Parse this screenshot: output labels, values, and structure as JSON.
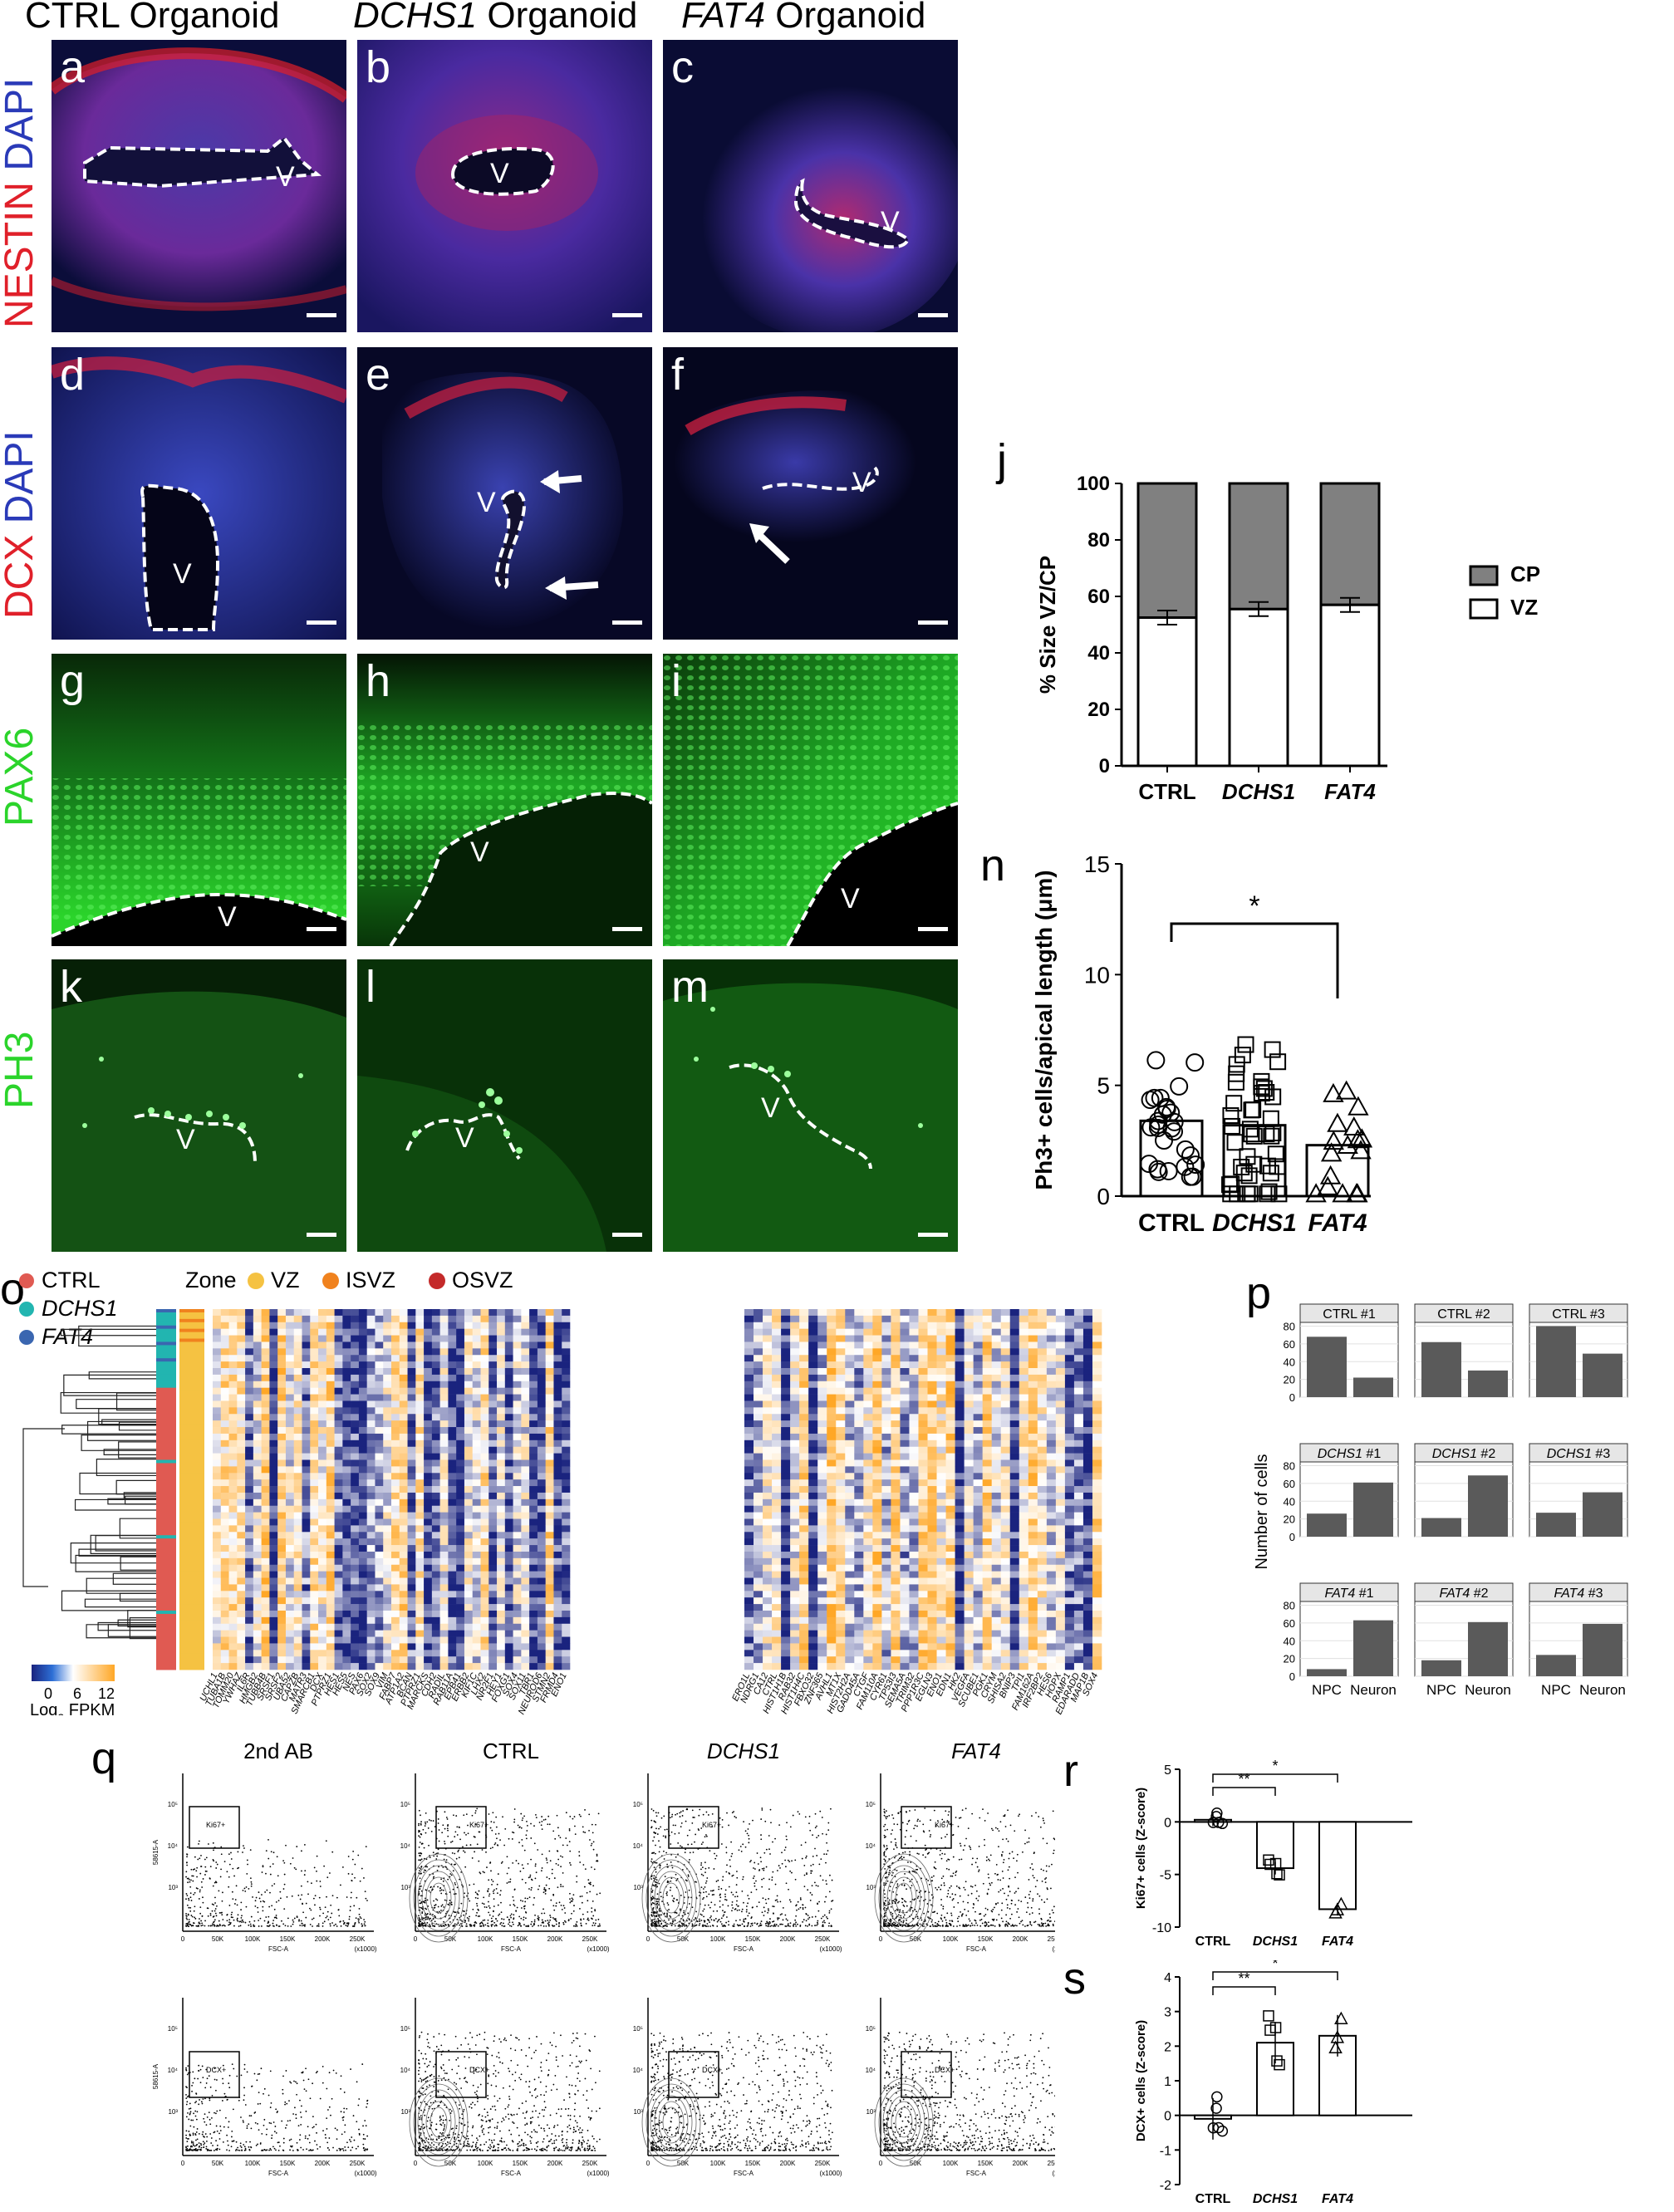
{
  "columns": {
    "ctrl_organoid": "CTRL Organoid",
    "dchs1_gene": "DCHS1",
    "fat4_gene": "FAT4",
    "organoid_word": "Organoid"
  },
  "rows": {
    "nestin": "NESTIN",
    "dcx": "DCX",
    "dapi": "DAPI",
    "pax6": "PAX6",
    "ph3": "PH3"
  },
  "panel_letters": {
    "a": "a",
    "b": "b",
    "c": "c",
    "d": "d",
    "e": "e",
    "f": "f",
    "g": "g",
    "h": "h",
    "i": "i",
    "j": "j",
    "k": "k",
    "l": "l",
    "m": "m",
    "n": "n",
    "o": "o",
    "p": "p",
    "q": "q",
    "r": "r",
    "s": "s"
  },
  "ventricle_mark": "V",
  "colors": {
    "nestin_red": "#e0202a",
    "dapi_blue": "#2a3ab8",
    "gfp_green": "#2bd42b",
    "ctrl_dot": "#e05a52",
    "dchs1_dot": "#22b5b0",
    "fat4_dot": "#3a66b0",
    "vz_dot": "#f5c242",
    "isvz_dot": "#f0821e",
    "osvz_dot": "#c42a2a",
    "heat_low": "#1a237e",
    "heat_mid": "#ffffff",
    "heat_high": "#ffa726",
    "bar_dark": "#5a5a5a",
    "cp_grey": "#808080"
  },
  "chart_j": {
    "type": "stacked_bar",
    "ylabel": "% Size VZ/CP",
    "yticks": [
      "0",
      "20",
      "40",
      "60",
      "80",
      "100"
    ],
    "categories": [
      "CTRL",
      "DCHS1",
      "FAT4"
    ],
    "series": [
      {
        "name": "VZ",
        "values": [
          52.5,
          55.5,
          57
        ]
      },
      {
        "name": "CP",
        "values": [
          47.5,
          44.5,
          43
        ]
      }
    ],
    "ylim": [
      0,
      100
    ]
  },
  "chart_n": {
    "type": "bar_scatter",
    "ylabel": "Ph3+ cells/apical length (μm)",
    "yticks": [
      "0",
      "5",
      "10",
      "15"
    ],
    "categories": [
      "CTRL",
      "DCHS1",
      "FAT4"
    ],
    "means": [
      3.4,
      3.2,
      2.3
    ],
    "ylim": [
      0,
      15
    ],
    "significance": "*"
  },
  "chart_o": {
    "legend_groups": [
      "CTRL",
      "DCHS1",
      "FAT4"
    ],
    "zone_label": "Zone",
    "zones": [
      "VZ",
      "ISVZ",
      "OSVZ"
    ],
    "colorbar_ticks": [
      "0",
      "6",
      "12"
    ],
    "colorbar_label": "Log",
    "colorbar_sub": "2",
    "colorbar_unit": " FPKM",
    "genes_left": [
      "UCHL1",
      "TUBA1B",
      "TOMM20",
      "YWHAZ",
      "IL6R",
      "HMGB2",
      "TUBB4B",
      "SRSF1",
      "SRSF2",
      "UBA52",
      "CAPZB",
      "MATR3",
      "SMARCB1",
      "DCX",
      "PTPRZ1",
      "HES1",
      "HES5",
      "NES",
      "PAX6",
      "SOX2",
      "SOX9",
      "VIM",
      "FABP7",
      "ATP1A2",
      "BCAN",
      "PTPRZ1",
      "MARCKS",
      "CDH2",
      "RADIL",
      "RAB11A",
      "EPB41",
      "ERBB2",
      "KIF1C",
      "LHX2",
      "NR2F1",
      "HEY1",
      "FOXG1",
      "SOX4",
      "SOX11",
      "TBR1",
      "NEUROD6",
      "STMN2",
      "FRMD4",
      "ENO1"
    ],
    "genes_right": [
      "ERO1L",
      "NDRG1",
      "CA12",
      "CTRL",
      "HIST1H1B",
      "RAB32",
      "HIST1H4C",
      "FBXO32",
      "ZNF365",
      "AVHL1",
      "MT1X",
      "HIST2H2A",
      "GADD45A",
      "CTGF",
      "FAM110A",
      "CYR61",
      "TP53I3",
      "SEMA5A",
      "TRIM32",
      "PPP1R3C",
      "EGLN3",
      "ENO1",
      "EDN1",
      "HK2",
      "VEGFA",
      "SCUBE1",
      "PGK1",
      "CRYM",
      "SHISA2",
      "BNIP3",
      "TPI1",
      "FAM162A",
      "IRF2BP2",
      "HES6",
      "HOPX",
      "RAMP1",
      "EDARADD",
      "MAP1B",
      "SOX4"
    ]
  },
  "chart_p": {
    "type": "bar_grid",
    "ylabel": "Number of cells",
    "yticks": [
      "0",
      "20",
      "40",
      "60",
      "80"
    ],
    "categories": [
      "NPC",
      "Neuron"
    ],
    "panels": [
      {
        "name": "CTRL #1",
        "values": [
          68,
          22
        ]
      },
      {
        "name": "CTRL #2",
        "values": [
          62,
          30
        ]
      },
      {
        "name": "CTRL #3",
        "values": [
          80,
          49
        ]
      },
      {
        "name": "DCHS1 #1",
        "values": [
          26,
          61
        ]
      },
      {
        "name": "DCHS1 #2",
        "values": [
          21,
          69
        ]
      },
      {
        "name": "DCHS1 #3",
        "values": [
          27,
          50
        ]
      },
      {
        "name": "FAT4 #1",
        "values": [
          8,
          63
        ]
      },
      {
        "name": "FAT4 #2",
        "values": [
          18,
          61
        ]
      },
      {
        "name": "FAT4 #3",
        "values": [
          24,
          59
        ]
      }
    ],
    "ylim": [
      0,
      80
    ]
  },
  "chart_q": {
    "type": "flow_cytometry",
    "columns": [
      "2nd AB",
      "CTRL",
      "DCHS1",
      "FAT4"
    ],
    "gates": [
      "Ki67+",
      "DCX+"
    ],
    "xlabel": "FSC-A",
    "xunit": "(x1000)",
    "ylabel": "58615-A",
    "xticks": [
      "0",
      "50K",
      "100K",
      "150K",
      "200K",
      "250K"
    ],
    "yticks": [
      "10³",
      "10⁴",
      "10⁵"
    ]
  },
  "chart_r": {
    "type": "bar_scatter",
    "ylabel": "Ki67+ cells (Z-score)",
    "yticks": [
      "5",
      "0",
      "-5",
      "-10"
    ],
    "categories": [
      "CTRL",
      "DCHS1",
      "FAT4"
    ],
    "means": [
      0.2,
      -4.4,
      -8.3
    ],
    "ylim": [
      -10,
      5
    ],
    "significance": [
      "**",
      "*"
    ]
  },
  "chart_s": {
    "type": "bar_scatter",
    "ylabel": "DCX+ cells (Z-score)",
    "yticks": [
      "4",
      "3",
      "2",
      "1",
      "0",
      "-1",
      "-2"
    ],
    "categories": [
      "CTRL",
      "DCHS1",
      "FAT4"
    ],
    "means": [
      -0.1,
      2.1,
      2.3
    ],
    "ylim": [
      -2,
      4
    ],
    "significance": [
      "**",
      "*"
    ]
  }
}
